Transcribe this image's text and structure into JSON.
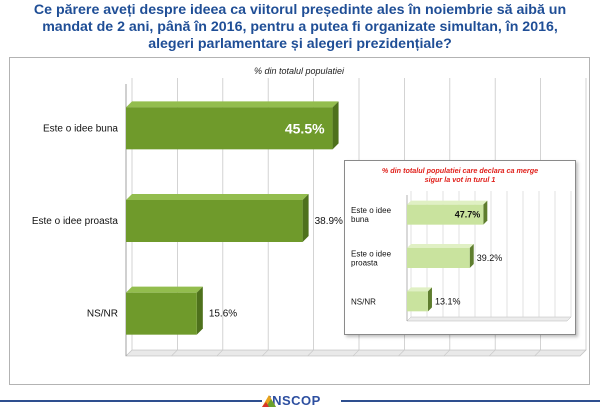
{
  "title": "Ce părere aveți despre ideea ca viitorul președinte ales în noiembrie să aibă un mandat  de 2 ani, până în 2016, pentru a putea fi organizate simultan, în 2016, alegeri parlamentare și alegeri prezidențiale?",
  "footer": {
    "logo_text": "INSCOP"
  },
  "colors": {
    "title": "#1f4e96",
    "main_bar": "#6f9a2b",
    "inset_bar": "#c9e39e",
    "inset_title": "#e0201b",
    "footer": "#2e4f8f"
  },
  "chart_data": [
    {
      "type": "bar",
      "orientation": "horizontal",
      "title": "% din totalul populatiei",
      "categories": [
        "Este o idee buna",
        "Este o idee proasta",
        "NS/NR"
      ],
      "values": [
        45.5,
        38.9,
        15.6
      ],
      "value_labels": [
        "45.5%",
        "38.9%",
        "15.6%"
      ],
      "xlim": [
        0,
        100
      ],
      "grid": true
    },
    {
      "type": "bar",
      "orientation": "horizontal",
      "title": "% din totalul populatiei care declara ca merge sigur la vot in turul 1",
      "categories": [
        "Este o idee buna",
        "Este o idee proasta",
        "NS/NR"
      ],
      "category_lines": [
        [
          "Este o idee",
          "buna"
        ],
        [
          "Este o idee",
          "proasta"
        ],
        [
          "NS/NR"
        ]
      ],
      "values": [
        47.7,
        39.2,
        13.1
      ],
      "value_labels": [
        "47.7%",
        "39.2%",
        "13.1%"
      ],
      "xlim": [
        0,
        100
      ],
      "grid": true
    }
  ]
}
